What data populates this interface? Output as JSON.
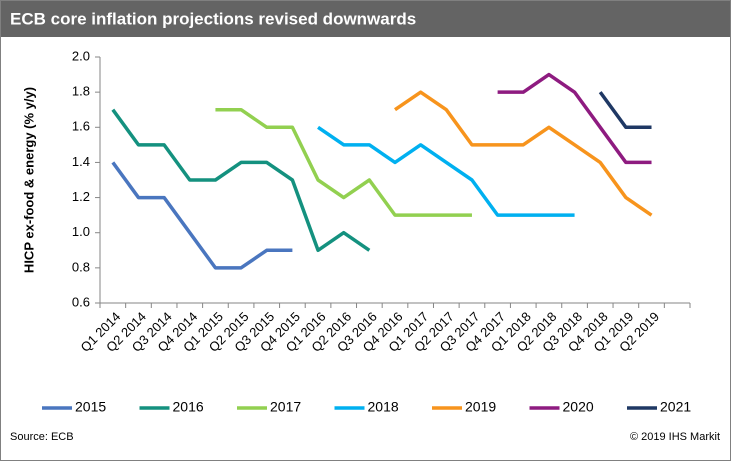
{
  "chart_data": {
    "type": "line",
    "title": "ECB core inflation projections revised downwards",
    "y_label": "HICP ex-food & energy (% y/y)",
    "source": "Source: ECB",
    "credit": "© 2019 IHS Markit",
    "categories": [
      "Q1 2014",
      "Q2 2014",
      "Q3 2014",
      "Q4 2014",
      "Q1 2015",
      "Q2 2015",
      "Q3 2015",
      "Q4 2015",
      "Q1 2016",
      "Q2 2016",
      "Q3 2016",
      "Q4 2016",
      "Q1 2017",
      "Q2 2017",
      "Q3 2017",
      "Q4 2017",
      "Q1 2018",
      "Q2 2018",
      "Q3 2018",
      "Q4 2018",
      "Q1 2019",
      "Q2 2019",
      null
    ],
    "ylim": [
      0.6,
      2.0
    ],
    "yticks": [
      0.6,
      0.8,
      {
        "value": 1,
        "label": "1.0"
      },
      1.2,
      1.4,
      1.6,
      1.8,
      {
        "value": 2,
        "label": "2.0"
      }
    ],
    "grid": false,
    "legend": "bottom",
    "series": [
      {
        "name": "2015",
        "color": "#4a76bf",
        "values": [
          1.4,
          1.2,
          1.2,
          1.0,
          0.8,
          0.8,
          0.9,
          0.9,
          null,
          null,
          null,
          null,
          null,
          null,
          null,
          null,
          null,
          null,
          null,
          null,
          null,
          null,
          null
        ]
      },
      {
        "name": "2016",
        "color": "#14917f",
        "values": [
          1.7,
          1.5,
          1.5,
          1.3,
          1.3,
          1.4,
          1.4,
          1.3,
          0.9,
          1.0,
          0.9,
          null,
          null,
          null,
          null,
          null,
          null,
          null,
          null,
          null,
          null,
          null,
          null
        ]
      },
      {
        "name": "2017",
        "color": "#92d050",
        "values": [
          null,
          null,
          null,
          null,
          1.7,
          1.7,
          1.6,
          1.6,
          1.3,
          1.2,
          1.3,
          1.1,
          1.1,
          1.1,
          1.1,
          null,
          null,
          null,
          null,
          null,
          null,
          null,
          null
        ]
      },
      {
        "name": "2018",
        "color": "#00b0f0",
        "values": [
          null,
          null,
          null,
          null,
          null,
          null,
          null,
          null,
          1.6,
          1.5,
          1.5,
          1.4,
          1.5,
          1.4,
          1.3,
          1.1,
          1.1,
          1.1,
          1.1,
          null,
          null,
          null,
          null
        ]
      },
      {
        "name": "2019",
        "color": "#f7941d",
        "values": [
          null,
          null,
          null,
          null,
          null,
          null,
          null,
          null,
          null,
          null,
          null,
          1.7,
          1.8,
          1.7,
          1.5,
          1.5,
          1.5,
          1.6,
          1.5,
          1.4,
          1.2,
          1.1,
          null
        ]
      },
      {
        "name": "2020",
        "color": "#8e1b80",
        "values": [
          null,
          null,
          null,
          null,
          null,
          null,
          null,
          null,
          null,
          null,
          null,
          null,
          null,
          null,
          null,
          1.8,
          1.8,
          1.9,
          1.8,
          1.6,
          1.4,
          1.4,
          null
        ]
      },
      {
        "name": "2021",
        "color": "#1f3864",
        "values": [
          null,
          null,
          null,
          null,
          null,
          null,
          null,
          null,
          null,
          null,
          null,
          null,
          null,
          null,
          null,
          null,
          null,
          null,
          null,
          1.8,
          1.6,
          1.6,
          null
        ]
      }
    ]
  }
}
